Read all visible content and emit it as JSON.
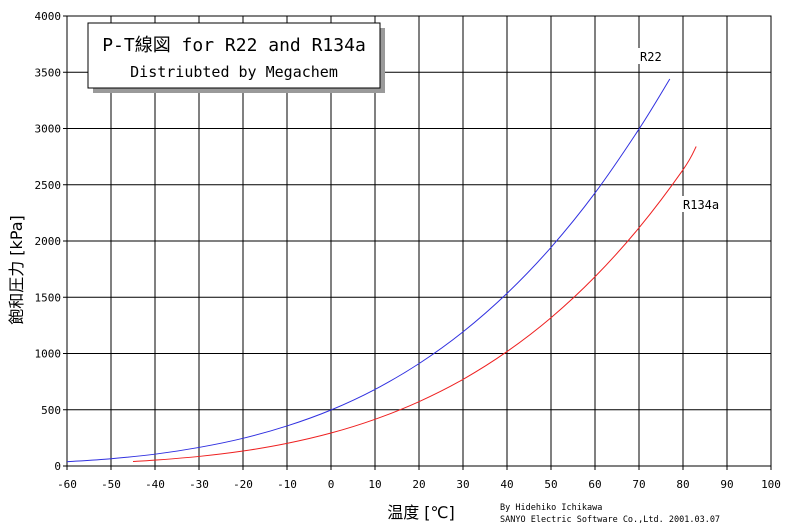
{
  "chart_data": {
    "type": "line",
    "title": "P-T線図 for R22 and R134a",
    "subtitle": "Distriubted by Megachem",
    "xlabel": "温度 [℃]",
    "ylabel": "飽和圧力 [kPa]",
    "xlim": [
      -60,
      100
    ],
    "ylim": [
      0,
      4000
    ],
    "x_ticks": [
      -60,
      -50,
      -40,
      -30,
      -20,
      -10,
      0,
      10,
      20,
      30,
      40,
      50,
      60,
      70,
      80,
      90,
      100
    ],
    "y_ticks": [
      0,
      500,
      1000,
      1500,
      2000,
      2500,
      3000,
      3500,
      4000
    ],
    "grid": true,
    "series": [
      {
        "name": "R22",
        "color": "#3030e0",
        "x": [
          -60,
          -50,
          -40,
          -30,
          -20,
          -10,
          0,
          10,
          20,
          30,
          40,
          50,
          60,
          70,
          77
        ],
        "y": [
          38,
          65,
          105,
          165,
          246,
          356,
          498,
          681,
          910,
          1192,
          1534,
          1943,
          2427,
          2995,
          3440
        ]
      },
      {
        "name": "R134a",
        "color": "#ee2020",
        "x": [
          -45,
          -40,
          -30,
          -20,
          -10,
          0,
          10,
          20,
          30,
          40,
          50,
          60,
          70,
          80,
          83
        ],
        "y": [
          40,
          52,
          85,
          133,
          201,
          293,
          415,
          572,
          770,
          1017,
          1318,
          1682,
          2117,
          2633,
          2840
        ]
      }
    ],
    "credit": [
      "By Hidehiko Ichikawa",
      "SANYO Electric Software Co.,Ltd. 2001.03.07"
    ]
  }
}
